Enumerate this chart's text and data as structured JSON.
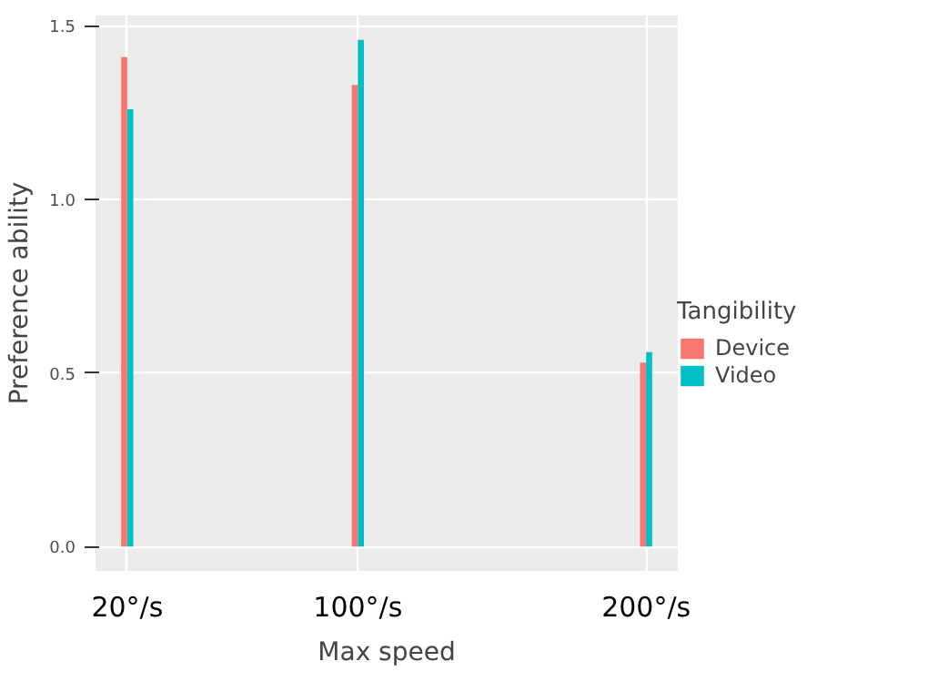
{
  "chart_data": {
    "type": "bar",
    "xlabel": "Max speed",
    "ylabel": "Preference ability",
    "legend_title": "Tangibility",
    "x": [
      20,
      100,
      200
    ],
    "series": [
      {
        "name": "Device",
        "color": "#f8766d",
        "values": [
          1.41,
          1.33,
          0.53
        ]
      },
      {
        "name": "Video",
        "color": "#00bfc4",
        "values": [
          1.26,
          1.46,
          0.56
        ]
      }
    ],
    "xlim": [
      9,
      211
    ],
    "xticks": [
      {
        "value": 20,
        "label": "20°/s"
      },
      {
        "value": 100,
        "label": "100°/s"
      },
      {
        "value": 200,
        "label": "200°/s"
      }
    ],
    "ylim": [
      -0.07,
      1.53
    ],
    "yticks": [
      {
        "value": 0,
        "label": "0.0"
      },
      {
        "value": 0.5,
        "label": "0.5"
      },
      {
        "value": 1,
        "label": "1.0"
      },
      {
        "value": 1.5,
        "label": "1.5"
      }
    ],
    "grid": true,
    "legend": "right"
  }
}
